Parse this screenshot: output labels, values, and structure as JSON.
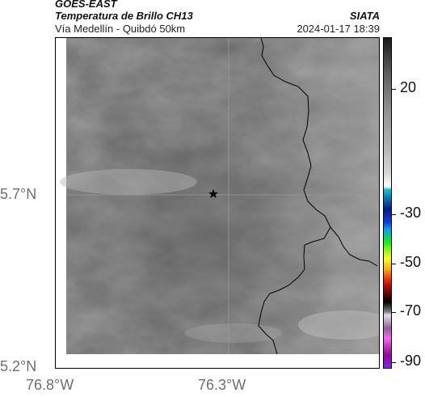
{
  "header": {
    "satellite": "GOES-EAST",
    "product": "Temperatura de Brillo CH13",
    "organization": "SIATA",
    "location": "Vía Medellín - Quibdó 50km",
    "timestamp": "2024-01-17 18:39"
  },
  "map": {
    "lat_ticks": [
      "5.7°N",
      "5.2°N"
    ],
    "lon_ticks": [
      "76.8°W",
      "76.3°W"
    ],
    "marker": "star-marker",
    "colors": {
      "imagery_base": "#6e6e6e",
      "coastline": "#000000",
      "gridline": "#9a9a9a"
    }
  },
  "colorbar": {
    "labels": [
      "20",
      "-30",
      "-50",
      "-70",
      "-90"
    ]
  }
}
